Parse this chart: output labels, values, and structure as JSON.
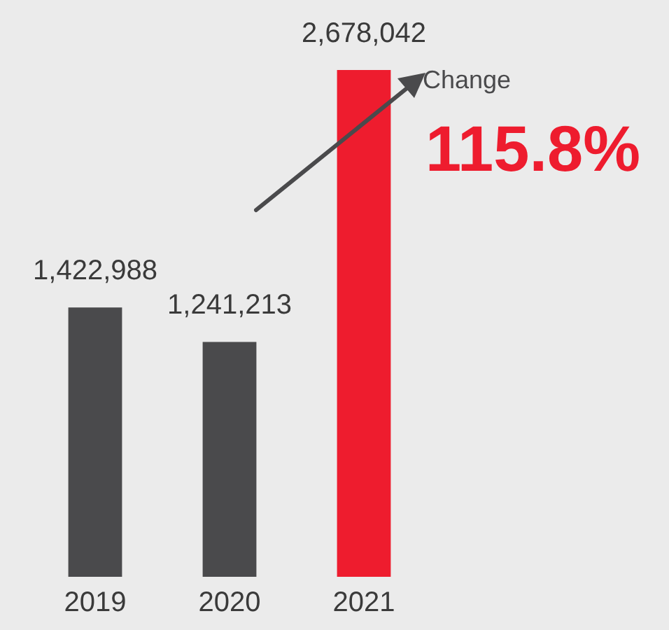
{
  "chart_data": {
    "type": "bar",
    "categories": [
      "2019",
      "2020",
      "2021"
    ],
    "values": [
      1422988,
      1241213,
      2678042
    ],
    "colors": [
      "#4a4a4c",
      "#4a4a4c",
      "#ee1c2e"
    ],
    "value_labels": [
      "1,422,988",
      "1,241,213",
      "2,678,042"
    ],
    "annotations": [
      "Change",
      "115.8%"
    ]
  }
}
